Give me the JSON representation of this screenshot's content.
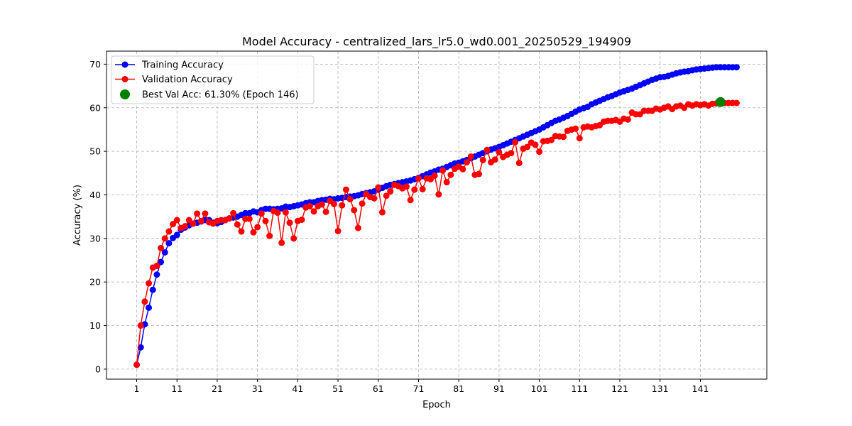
{
  "chart_data": {
    "type": "line",
    "title": "Model Accuracy - centralized_lars_lr5.0_wd0.001_20250529_194909",
    "xlabel": "Epoch",
    "ylabel": "Accuracy (%)",
    "xlim": [
      -6.5,
      157.5
    ],
    "ylim": [
      -2.3,
      73
    ],
    "xticks": [
      1,
      11,
      21,
      31,
      41,
      51,
      61,
      71,
      81,
      91,
      101,
      111,
      121,
      131,
      141
    ],
    "yticks": [
      0,
      10,
      20,
      30,
      40,
      50,
      60,
      70
    ],
    "grid": true,
    "legend_position": "top-left",
    "legend": {
      "training": "Training Accuracy",
      "validation": "Validation Accuracy",
      "best": "Best Val Acc: 61.30% (Epoch 146)"
    },
    "best_point": {
      "epoch": 146,
      "value": 61.3
    },
    "colors": {
      "training": "#0000ff",
      "validation": "#ff0000",
      "best": "#008000",
      "grid": "#b0b0b0"
    },
    "series": [
      {
        "name": "Training Accuracy",
        "x_start": 1,
        "values": [
          1.0,
          5.0,
          10.3,
          14.1,
          18.2,
          21.7,
          24.6,
          26.8,
          28.9,
          30.1,
          30.8,
          32.0,
          32.5,
          33.0,
          33.4,
          33.6,
          33.9,
          34.2,
          34.2,
          33.6,
          33.5,
          33.8,
          34.2,
          34.6,
          34.8,
          35.0,
          35.4,
          35.8,
          35.8,
          36.2,
          36.0,
          36.5,
          36.8,
          36.8,
          36.7,
          36.8,
          36.9,
          37.3,
          37.2,
          37.4,
          37.6,
          37.8,
          38.1,
          38.3,
          38.3,
          38.6,
          38.8,
          38.9,
          39.1,
          39.0,
          39.2,
          39.3,
          39.5,
          39.6,
          39.7,
          39.9,
          40.2,
          40.4,
          40.6,
          40.8,
          41.2,
          41.6,
          42.0,
          42.3,
          42.5,
          42.7,
          42.9,
          43.1,
          43.3,
          43.6,
          43.9,
          44.3,
          44.7,
          45.1,
          45.4,
          45.8,
          46.0,
          46.4,
          46.8,
          47.2,
          47.4,
          47.7,
          48.0,
          48.4,
          48.8,
          49.2,
          49.6,
          50.0,
          50.4,
          50.7,
          51.0,
          51.4,
          51.8,
          52.2,
          52.6,
          53.0,
          53.4,
          53.8,
          54.2,
          54.6,
          55.0,
          55.5,
          56.0,
          56.5,
          57.0,
          57.3,
          57.7,
          58.1,
          58.6,
          59.1,
          59.6,
          59.9,
          60.2,
          60.8,
          61.2,
          61.6,
          62.0,
          62.4,
          62.7,
          63.1,
          63.5,
          63.8,
          64.1,
          64.4,
          64.8,
          65.2,
          65.6,
          66.0,
          66.4,
          66.7,
          67.0,
          67.1,
          67.3,
          67.6,
          67.9,
          68.1,
          68.3,
          68.4,
          68.6,
          68.8,
          68.9,
          69.0,
          69.1,
          69.2,
          69.3,
          69.3,
          69.3,
          69.3,
          69.3,
          69.3
        ]
      },
      {
        "name": "Validation Accuracy",
        "x_start": 1,
        "values": [
          1.0,
          10.0,
          15.5,
          19.7,
          23.3,
          23.7,
          27.8,
          30.0,
          31.6,
          33.3,
          34.2,
          32.4,
          32.8,
          34.2,
          33.4,
          35.7,
          34.0,
          35.7,
          33.7,
          33.4,
          34.0,
          34.2,
          34.2,
          34.6,
          35.8,
          33.2,
          31.6,
          34.5,
          34.5,
          31.4,
          32.6,
          35.7,
          34.0,
          30.6,
          36.3,
          35.9,
          29.0,
          36.0,
          33.6,
          30.0,
          34.0,
          34.3,
          37.1,
          37.4,
          36.2,
          37.4,
          37.8,
          36.1,
          38.6,
          37.9,
          31.7,
          37.6,
          41.2,
          39.0,
          36.5,
          32.4,
          38.0,
          40.2,
          39.5,
          39.2,
          41.7,
          36.0,
          39.8,
          40.8,
          42.3,
          42.0,
          41.5,
          41.9,
          38.8,
          41.2,
          43.8,
          41.3,
          43.8,
          43.6,
          44.4,
          40.1,
          45.6,
          42.9,
          44.6,
          46.0,
          46.5,
          45.9,
          47.5,
          48.8,
          44.6,
          44.8,
          48.0,
          50.3,
          47.5,
          48.1,
          49.8,
          48.7,
          49.2,
          49.6,
          52.1,
          47.3,
          50.6,
          51.0,
          52.0,
          51.5,
          49.9,
          52.3,
          52.4,
          52.6,
          53.5,
          53.4,
          53.3,
          54.7,
          55.0,
          55.2,
          53.0,
          55.5,
          55.7,
          55.5,
          55.8,
          56.0,
          56.8,
          57.0,
          57.0,
          57.2,
          56.8,
          57.5,
          57.3,
          58.9,
          58.5,
          58.5,
          59.3,
          59.3,
          59.3,
          59.8,
          59.6,
          60.0,
          60.3,
          59.7,
          60.3,
          60.5,
          60.0,
          60.8,
          60.5,
          60.8,
          60.6,
          60.8,
          60.5,
          60.9,
          61.0,
          61.3,
          61.1,
          61.1,
          61.1,
          61.1
        ]
      }
    ]
  }
}
